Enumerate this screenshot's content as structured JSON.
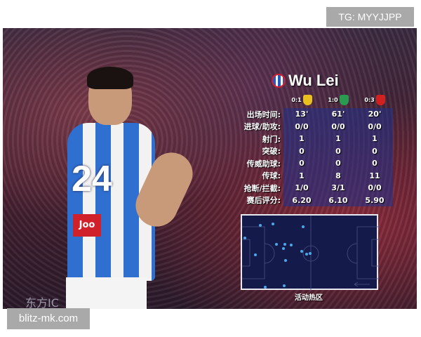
{
  "watermark_top": "TG: MYYJJPP",
  "watermark_bottom": "blitz-mk.com",
  "photo_credit": "东方IC",
  "player": {
    "name": "Wu Lei",
    "shirt_number": "24",
    "sponsor": "Joo"
  },
  "matches": [
    {
      "score": "0:1",
      "badge_color": "#e8c020"
    },
    {
      "score": "1:0",
      "badge_color": "#2a9a50"
    },
    {
      "score": "0:3",
      "badge_color": "#d02020"
    }
  ],
  "stats": [
    {
      "label": "出场时间:",
      "values": [
        "13'",
        "61'",
        "20'"
      ]
    },
    {
      "label": "进球/助攻:",
      "values": [
        "0/0",
        "0/0",
        "0/0"
      ]
    },
    {
      "label": "射门:",
      "values": [
        "1",
        "1",
        "1"
      ]
    },
    {
      "label": "突破:",
      "values": [
        "0",
        "0",
        "0"
      ]
    },
    {
      "label": "传威助球:",
      "values": [
        "0",
        "0",
        "0"
      ]
    },
    {
      "label": "传球:",
      "values": [
        "1",
        "8",
        "11"
      ]
    },
    {
      "label": "抢断/拦截:",
      "values": [
        "1/0",
        "3/1",
        "0/0"
      ]
    },
    {
      "label": "赛后评分:",
      "values": [
        "6.20",
        "6.10",
        "5.90"
      ]
    }
  ],
  "heatmap": {
    "label": "活动热区",
    "attack_direction": "left",
    "dot_color": "#4aa8e8"
  }
}
